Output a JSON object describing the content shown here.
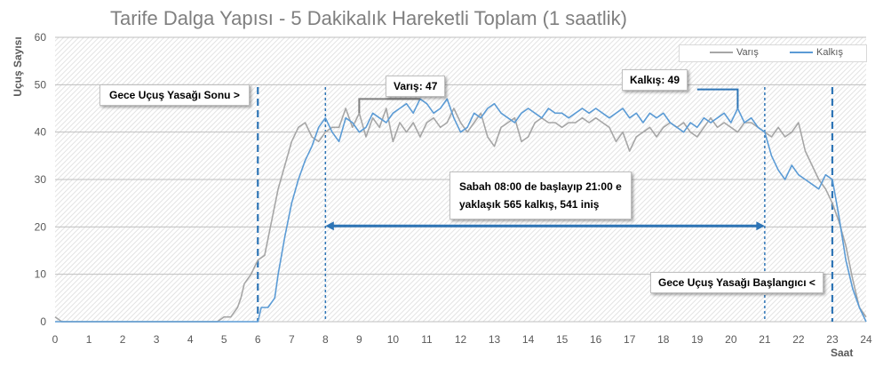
{
  "chart_data": {
    "type": "line",
    "title": "Tarife Dalga Yapısı - 5 Dakikalık Hareketli Toplam (1 saatlik)",
    "xlabel": "Saat",
    "ylabel": "Uçuş Sayısı",
    "xlim": [
      0,
      24
    ],
    "ylim": [
      0,
      60
    ],
    "x_ticks": [
      "0",
      "1",
      "2",
      "3",
      "4",
      "5",
      "6",
      "7",
      "8",
      "9",
      "10",
      "11",
      "12",
      "13",
      "14",
      "15",
      "16",
      "17",
      "18",
      "19",
      "20",
      "21",
      "22",
      "23",
      "24"
    ],
    "y_ticks": [
      "0",
      "10",
      "20",
      "30",
      "40",
      "50",
      "60"
    ],
    "grid": true,
    "legend_position": "top-right",
    "series": [
      {
        "name": "Varış",
        "color": "#a6a6a6",
        "points": [
          [
            0,
            1
          ],
          [
            0.2,
            0
          ],
          [
            4.8,
            0
          ],
          [
            5.0,
            1
          ],
          [
            5.2,
            1
          ],
          [
            5.4,
            3
          ],
          [
            5.5,
            5
          ],
          [
            5.6,
            8
          ],
          [
            5.8,
            10
          ],
          [
            6.0,
            13
          ],
          [
            6.2,
            14
          ],
          [
            6.4,
            21
          ],
          [
            6.6,
            28
          ],
          [
            6.8,
            33
          ],
          [
            7.0,
            38
          ],
          [
            7.2,
            41
          ],
          [
            7.4,
            42
          ],
          [
            7.6,
            39
          ],
          [
            7.8,
            38
          ],
          [
            8.0,
            40
          ],
          [
            8.2,
            41
          ],
          [
            8.4,
            41
          ],
          [
            8.6,
            45
          ],
          [
            8.8,
            41
          ],
          [
            9.0,
            44
          ],
          [
            9.2,
            39
          ],
          [
            9.4,
            43
          ],
          [
            9.6,
            41
          ],
          [
            9.8,
            45
          ],
          [
            10.0,
            38
          ],
          [
            10.2,
            42
          ],
          [
            10.4,
            40
          ],
          [
            10.6,
            42
          ],
          [
            10.8,
            39
          ],
          [
            11.0,
            42
          ],
          [
            11.2,
            43
          ],
          [
            11.4,
            41
          ],
          [
            11.6,
            42
          ],
          [
            11.8,
            45
          ],
          [
            12.0,
            42
          ],
          [
            12.2,
            40
          ],
          [
            12.4,
            42
          ],
          [
            12.6,
            44
          ],
          [
            12.8,
            39
          ],
          [
            13.0,
            37
          ],
          [
            13.2,
            41
          ],
          [
            13.4,
            42
          ],
          [
            13.6,
            43
          ],
          [
            13.8,
            38
          ],
          [
            14.0,
            39
          ],
          [
            14.2,
            42
          ],
          [
            14.4,
            43
          ],
          [
            14.6,
            42
          ],
          [
            14.8,
            42
          ],
          [
            15.0,
            41
          ],
          [
            15.2,
            42
          ],
          [
            15.4,
            42
          ],
          [
            15.6,
            43
          ],
          [
            15.8,
            42
          ],
          [
            16.0,
            43
          ],
          [
            16.2,
            42
          ],
          [
            16.4,
            41
          ],
          [
            16.6,
            38
          ],
          [
            16.8,
            40
          ],
          [
            17.0,
            36
          ],
          [
            17.2,
            39
          ],
          [
            17.4,
            40
          ],
          [
            17.6,
            41
          ],
          [
            17.8,
            39
          ],
          [
            18.0,
            41
          ],
          [
            18.2,
            42
          ],
          [
            18.4,
            41
          ],
          [
            18.6,
            42
          ],
          [
            18.8,
            40
          ],
          [
            19.0,
            39
          ],
          [
            19.2,
            41
          ],
          [
            19.4,
            43
          ],
          [
            19.6,
            41
          ],
          [
            19.8,
            42
          ],
          [
            20.0,
            41
          ],
          [
            20.2,
            40
          ],
          [
            20.4,
            42
          ],
          [
            20.6,
            42
          ],
          [
            20.8,
            41
          ],
          [
            21.0,
            40
          ],
          [
            21.2,
            39
          ],
          [
            21.4,
            41
          ],
          [
            21.6,
            39
          ],
          [
            21.8,
            40
          ],
          [
            22.0,
            42
          ],
          [
            22.2,
            36
          ],
          [
            22.4,
            33
          ],
          [
            22.6,
            30
          ],
          [
            22.8,
            28
          ],
          [
            23.0,
            25
          ],
          [
            23.2,
            21
          ],
          [
            23.4,
            16
          ],
          [
            23.6,
            9
          ],
          [
            23.8,
            3
          ],
          [
            24.0,
            1
          ]
        ]
      },
      {
        "name": "Kalkış",
        "color": "#5b9bd5",
        "points": [
          [
            0,
            0
          ],
          [
            6.0,
            0
          ],
          [
            6.1,
            3
          ],
          [
            6.3,
            3
          ],
          [
            6.5,
            5
          ],
          [
            6.6,
            10
          ],
          [
            6.8,
            18
          ],
          [
            7.0,
            25
          ],
          [
            7.2,
            30
          ],
          [
            7.4,
            34
          ],
          [
            7.6,
            37
          ],
          [
            7.8,
            41
          ],
          [
            8.0,
            43
          ],
          [
            8.2,
            40
          ],
          [
            8.4,
            38
          ],
          [
            8.6,
            43
          ],
          [
            8.8,
            42
          ],
          [
            9.0,
            40
          ],
          [
            9.2,
            41
          ],
          [
            9.4,
            44
          ],
          [
            9.6,
            43
          ],
          [
            9.8,
            42
          ],
          [
            10.0,
            44
          ],
          [
            10.2,
            45
          ],
          [
            10.4,
            46
          ],
          [
            10.6,
            44
          ],
          [
            10.8,
            47
          ],
          [
            11.0,
            46
          ],
          [
            11.2,
            44
          ],
          [
            11.4,
            45
          ],
          [
            11.6,
            47
          ],
          [
            11.8,
            43
          ],
          [
            12.0,
            40
          ],
          [
            12.2,
            41
          ],
          [
            12.4,
            44
          ],
          [
            12.6,
            43
          ],
          [
            12.8,
            45
          ],
          [
            13.0,
            46
          ],
          [
            13.2,
            44
          ],
          [
            13.4,
            43
          ],
          [
            13.6,
            42
          ],
          [
            13.8,
            44
          ],
          [
            14.0,
            45
          ],
          [
            14.2,
            44
          ],
          [
            14.4,
            43
          ],
          [
            14.6,
            45
          ],
          [
            14.8,
            44
          ],
          [
            15.0,
            44
          ],
          [
            15.2,
            43
          ],
          [
            15.4,
            44
          ],
          [
            15.6,
            45
          ],
          [
            15.8,
            44
          ],
          [
            16.0,
            45
          ],
          [
            16.2,
            44
          ],
          [
            16.4,
            43
          ],
          [
            16.6,
            44
          ],
          [
            16.8,
            45
          ],
          [
            17.0,
            43
          ],
          [
            17.2,
            44
          ],
          [
            17.4,
            42
          ],
          [
            17.6,
            44
          ],
          [
            17.8,
            43
          ],
          [
            18.0,
            44
          ],
          [
            18.2,
            42
          ],
          [
            18.4,
            41
          ],
          [
            18.6,
            40
          ],
          [
            18.8,
            42
          ],
          [
            19.0,
            41
          ],
          [
            19.2,
            43
          ],
          [
            19.4,
            42
          ],
          [
            19.6,
            43
          ],
          [
            19.8,
            44
          ],
          [
            20.0,
            42
          ],
          [
            20.2,
            45
          ],
          [
            20.4,
            42
          ],
          [
            20.6,
            43
          ],
          [
            20.8,
            41
          ],
          [
            21.0,
            40
          ],
          [
            21.2,
            35
          ],
          [
            21.4,
            32
          ],
          [
            21.6,
            30
          ],
          [
            21.8,
            33
          ],
          [
            22.0,
            31
          ],
          [
            22.2,
            30
          ],
          [
            22.4,
            29
          ],
          [
            22.6,
            28
          ],
          [
            22.8,
            31
          ],
          [
            23.0,
            30
          ],
          [
            23.2,
            22
          ],
          [
            23.4,
            13
          ],
          [
            23.6,
            7
          ],
          [
            23.8,
            3
          ],
          [
            24.0,
            0
          ]
        ]
      }
    ],
    "annotations": {
      "gece_sonu": "Gece Uçuş Yasağı Sonu >",
      "gece_baslangic": "Gece Uçuş Yasağı Başlangıcı <",
      "varis_peak": "Varış: 47",
      "kalkis_peak": "Kalkış: 49",
      "note_line1": "Sabah 08:00 de başlayıp 21:00 e",
      "note_line2": "yaklaşık 565 kalkış, 541 iniş"
    },
    "vlines": [
      6,
      8,
      21,
      23
    ]
  }
}
